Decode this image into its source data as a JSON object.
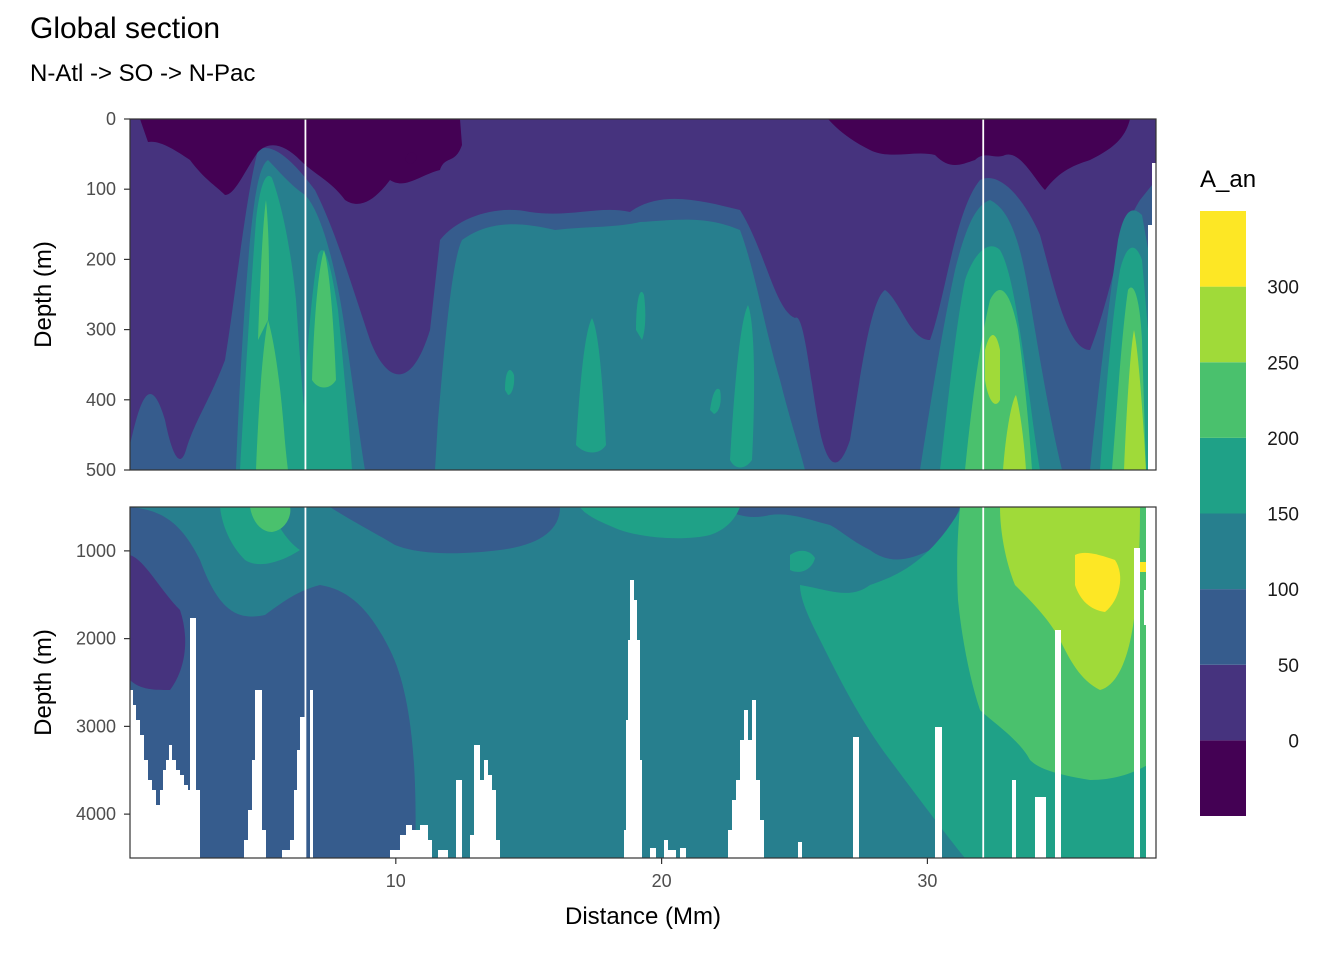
{
  "chart_data": {
    "type": "heatmap",
    "subtype": "filled-contour ocean section, two stacked depth panels",
    "title": "Global section",
    "subtitle": "N-Atl -> SO -> N-Pac",
    "xlabel": "Distance (Mm)",
    "ylabel": "Depth (m)",
    "xlim": [
      0,
      38.6
    ],
    "x_ticks": [
      10,
      20,
      30
    ],
    "panels": [
      {
        "name": "upper",
        "ylim": [
          0,
          500
        ],
        "reversed": true,
        "y_ticks": [
          0,
          100,
          200,
          300,
          400,
          500
        ]
      },
      {
        "name": "lower",
        "ylim": [
          500,
          4500
        ],
        "reversed": true,
        "y_ticks": [
          1000,
          2000,
          3000,
          4000
        ]
      }
    ],
    "legend": {
      "title": "A_an",
      "position": "right",
      "breaks": [
        0,
        50,
        100,
        150,
        200,
        250,
        300
      ],
      "bands": [
        {
          "range": [
            -50,
            0
          ],
          "color": "#440154"
        },
        {
          "range": [
            0,
            50
          ],
          "color": "#46337e"
        },
        {
          "range": [
            50,
            100
          ],
          "color": "#365c8d"
        },
        {
          "range": [
            100,
            150
          ],
          "color": "#277f8e"
        },
        {
          "range": [
            150,
            200
          ],
          "color": "#1fa187"
        },
        {
          "range": [
            200,
            250
          ],
          "color": "#4ac16d"
        },
        {
          "range": [
            250,
            300
          ],
          "color": "#a0da39"
        },
        {
          "range": [
            300,
            350
          ],
          "color": "#fde725"
        }
      ]
    },
    "vertical_lines_x": [
      6.6,
      32.1
    ],
    "grid": true,
    "theme": "bw"
  }
}
